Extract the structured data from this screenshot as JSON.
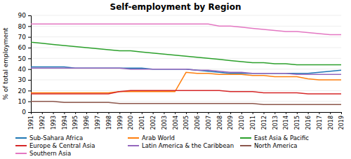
{
  "chart_data": {
    "type": "line",
    "title": "Self-employment by Region",
    "y_label": "% of total employment",
    "x": [
      1991,
      1992,
      1993,
      1994,
      1995,
      1996,
      1997,
      1998,
      1999,
      2000,
      2001,
      2002,
      2003,
      2004,
      2005,
      2006,
      2007,
      2008,
      2009,
      2010,
      2011,
      2012,
      2013,
      2014,
      2015,
      2016,
      2017,
      2018,
      2019
    ],
    "series": [
      {
        "name": "Sub-Sahara Africa",
        "values": [
          42,
          42,
          42,
          42,
          41,
          41,
          41,
          41,
          41,
          41,
          41,
          40,
          40,
          40,
          40,
          39,
          38,
          37,
          36,
          36,
          36,
          36,
          36,
          36,
          36,
          36,
          37,
          38,
          39
        ]
      },
      {
        "name": "Arab World",
        "values": [
          18,
          18,
          18,
          18,
          18,
          18,
          18,
          18,
          19,
          19,
          19,
          19,
          19,
          19,
          37,
          36,
          36,
          35,
          35,
          35,
          34,
          34,
          33,
          33,
          33,
          31,
          30,
          30,
          30
        ]
      },
      {
        "name": "East Asia & Pacific",
        "values": [
          65,
          64,
          63,
          62,
          61,
          60,
          59,
          58,
          57,
          57,
          56,
          55,
          54,
          53,
          52,
          51,
          50,
          49,
          48,
          47,
          46,
          46,
          45,
          45,
          44,
          44,
          44,
          44,
          44
        ]
      },
      {
        "name": "Europe & Central Asia",
        "values": [
          17,
          17,
          17,
          17,
          17,
          17,
          17,
          17,
          19,
          20,
          20,
          20,
          20,
          20,
          20,
          20,
          20,
          20,
          19,
          19,
          19,
          18,
          18,
          18,
          18,
          17,
          17,
          17,
          17
        ]
      },
      {
        "name": "Latin America & the Caribbean",
        "values": [
          41,
          41,
          41,
          41,
          41,
          41,
          41,
          41,
          41,
          40,
          40,
          40,
          40,
          40,
          40,
          39,
          39,
          38,
          37,
          37,
          36,
          36,
          36,
          36,
          35,
          35,
          35,
          35,
          35
        ]
      },
      {
        "name": "North America",
        "values": [
          10,
          10,
          10,
          9,
          9,
          9,
          9,
          9,
          8,
          8,
          8,
          8,
          8,
          8,
          8,
          8,
          8,
          8,
          8,
          8,
          8,
          7,
          7,
          7,
          7,
          7,
          7,
          7,
          7
        ]
      },
      {
        "name": "Southern Asia",
        "values": [
          82,
          82,
          82,
          82,
          82,
          82,
          82,
          82,
          82,
          82,
          82,
          82,
          82,
          82,
          82,
          82,
          82,
          80,
          80,
          79,
          78,
          77,
          76,
          75,
          75,
          74,
          73,
          72,
          72
        ]
      }
    ],
    "xlim": [
      1991,
      2019
    ],
    "xticks": [
      1991,
      1992,
      1993,
      1994,
      1995,
      1996,
      1997,
      1998,
      1999,
      2000,
      2001,
      2002,
      2003,
      2004,
      2005,
      2006,
      2007,
      2008,
      2009,
      2010,
      2011,
      2012,
      2013,
      2014,
      2015,
      2016,
      2017,
      2018,
      2019
    ],
    "ylim": [
      0,
      90
    ],
    "yticks": [
      0,
      10,
      20,
      30,
      40,
      50,
      60,
      70,
      80,
      90
    ],
    "grid": true,
    "legend": "bottom"
  }
}
